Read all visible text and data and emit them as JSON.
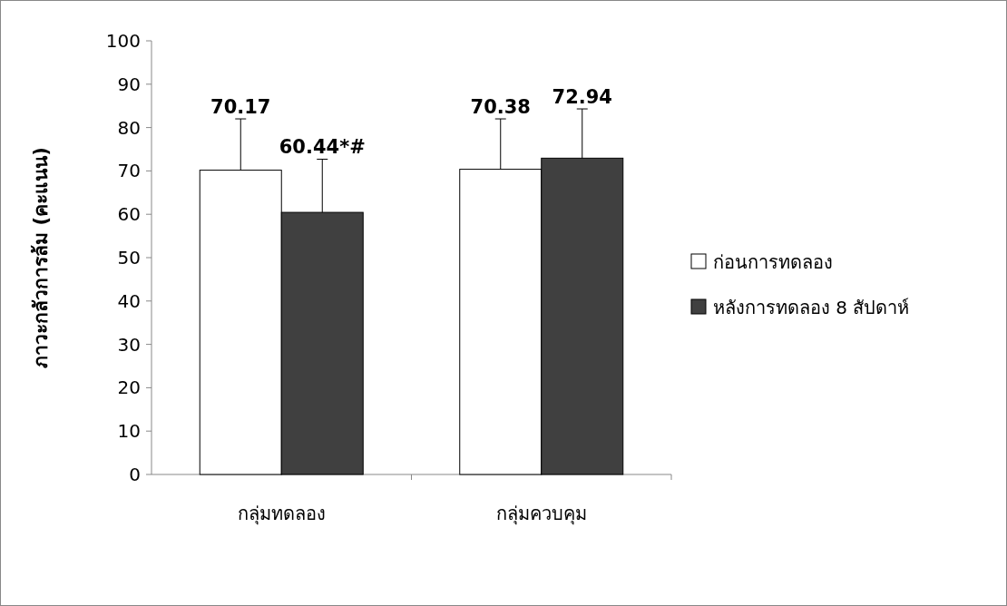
{
  "chart_data": {
    "type": "bar",
    "ylabel": "ภาวะกลัวการล้ม (คะแนน)",
    "categories": [
      "กลุ่มทดลอง",
      "กลุ่มควบคุม"
    ],
    "ylim": [
      0,
      100
    ],
    "yticks": [
      0,
      10,
      20,
      30,
      40,
      50,
      60,
      70,
      80,
      90,
      100
    ],
    "grid": false,
    "legend": "right",
    "series": [
      {
        "name": "ก่อนการทดลอง",
        "color": "#ffffff",
        "values": [
          70.17,
          70.38
        ],
        "errors": [
          [
            70.17,
            82
          ],
          [
            70.38,
            82
          ]
        ],
        "value_labels": [
          "70.17",
          "70.38"
        ]
      },
      {
        "name": "หลังการทดลอง 8 สัปดาห์",
        "color": "#404040",
        "values": [
          60.44,
          72.94
        ],
        "errors": [
          [
            60.44,
            72.7
          ],
          [
            72.94,
            84.3
          ]
        ],
        "value_labels": [
          "60.44*#",
          "72.94"
        ]
      }
    ]
  }
}
